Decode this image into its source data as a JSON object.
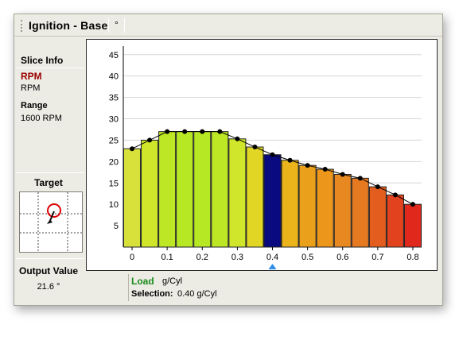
{
  "window": {
    "title": "Ignition - Base",
    "unit_button": "°"
  },
  "sidebar": {
    "slice_info_heading": "Slice Info",
    "slice_axis_title": "RPM",
    "slice_axis_unit": "RPM",
    "range_heading": "Range",
    "range_value": "1600 RPM",
    "target_heading": "Target",
    "output_heading": "Output Value",
    "output_value": "21.6 °"
  },
  "footer": {
    "axis_name": "Load",
    "axis_unit": "g/Cyl",
    "selection_label": "Selection:",
    "selection_value": "0.40 g/Cyl"
  },
  "chart_data": {
    "type": "bar",
    "x": [
      0,
      0.05,
      0.1,
      0.15,
      0.2,
      0.25,
      0.3,
      0.35,
      0.4,
      0.45,
      0.5,
      0.55,
      0.6,
      0.65,
      0.7,
      0.75,
      0.8
    ],
    "values": [
      23,
      25,
      27,
      27,
      27,
      27,
      25.3,
      23.4,
      21.6,
      20.3,
      19.1,
      18.2,
      17.0,
      16.1,
      14.1,
      12.2,
      10.0
    ],
    "xticks": [
      "0",
      "0.1",
      "0.2",
      "0.3",
      "0.4",
      "0.5",
      "0.6",
      "0.7",
      "0.8"
    ],
    "yticks": [
      "5",
      "10",
      "15",
      "20",
      "25",
      "30",
      "35",
      "40",
      "45"
    ],
    "ylim": [
      0,
      47
    ],
    "xlim": [
      -0.025,
      0.825
    ],
    "selected_x": 0.4,
    "selected_color": "#0a0a80",
    "bar_colors": [
      "#d8e03a",
      "#cfe62a",
      "#bde624",
      "#b7e824",
      "#b7e824",
      "#bde624",
      "#cfe62a",
      "#e2d624",
      "#0a0a80",
      "#eab41a",
      "#eaa01a",
      "#ec961c",
      "#e88820",
      "#e67a20",
      "#e35d1e",
      "#e2421d",
      "#e0281d"
    ],
    "grid": true
  }
}
